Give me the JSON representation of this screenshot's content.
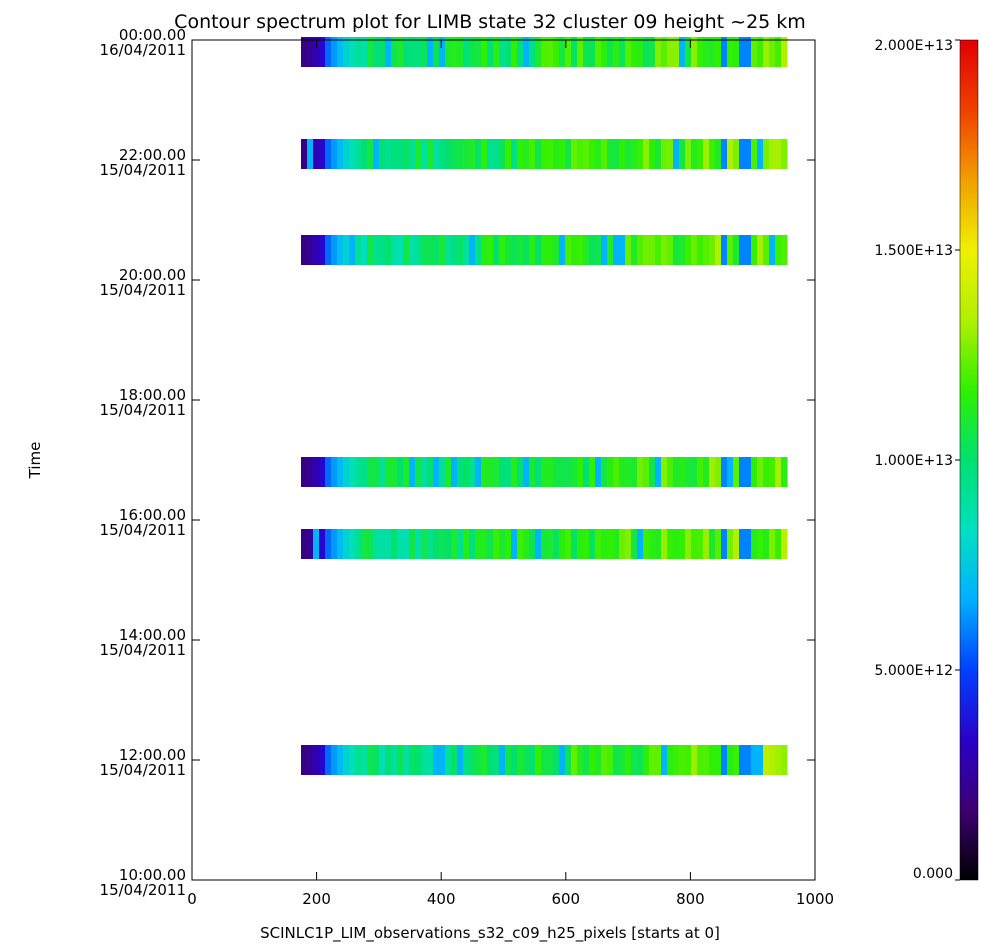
{
  "chart_data": {
    "type": "heatmap",
    "title": "Contour spectrum plot for LIMB state 32 cluster 09 height ~25 km",
    "xlabel": "SCINLC1P_LIM_observations_s32_c09_h25_pixels [starts at 0]",
    "ylabel": "Time",
    "xlim": [
      0,
      1000
    ],
    "x_ticks": [
      "0",
      "200",
      "400",
      "600",
      "800",
      "1000"
    ],
    "y_tick_labels": [
      {
        "time": "10:00.00",
        "date": "15/04/2011"
      },
      {
        "time": "12:00.00",
        "date": "15/04/2011"
      },
      {
        "time": "14:00.00",
        "date": "15/04/2011"
      },
      {
        "time": "16:00.00",
        "date": "15/04/2011"
      },
      {
        "time": "18:00.00",
        "date": "15/04/2011"
      },
      {
        "time": "20:00.00",
        "date": "15/04/2011"
      },
      {
        "time": "22:00.00",
        "date": "15/04/2011"
      },
      {
        "time": "00:00.00",
        "date": "16/04/2011"
      }
    ],
    "ylim_hours": [
      10,
      24
    ],
    "observation_rows": [
      {
        "time_hours": 12.0,
        "x_start": 175,
        "x_end": 950
      },
      {
        "time_hours": 15.6,
        "x_start": 175,
        "x_end": 950
      },
      {
        "time_hours": 16.8,
        "x_start": 175,
        "x_end": 950
      },
      {
        "time_hours": 20.5,
        "x_start": 175,
        "x_end": 950
      },
      {
        "time_hours": 22.1,
        "x_start": 175,
        "x_end": 950
      },
      {
        "time_hours": 23.8,
        "x_start": 175,
        "x_end": 950
      }
    ],
    "colorbar": {
      "min": 0,
      "max": 20000000000000.0,
      "tick_values": [
        0,
        5000000000000.0,
        10000000000000.0,
        15000000000000.0,
        20000000000000.0
      ],
      "tick_labels": [
        "0.000",
        "5.000E+12",
        "1.000E+13",
        "1.500E+13",
        "2.000E+13"
      ],
      "colormap": [
        "#000000",
        "#3c0070",
        "#2a00c8",
        "#0040ff",
        "#00b0ff",
        "#00e0c0",
        "#00e070",
        "#30f000",
        "#b0f000",
        "#f0f000",
        "#f0a000",
        "#f04000",
        "#e00000"
      ]
    }
  }
}
